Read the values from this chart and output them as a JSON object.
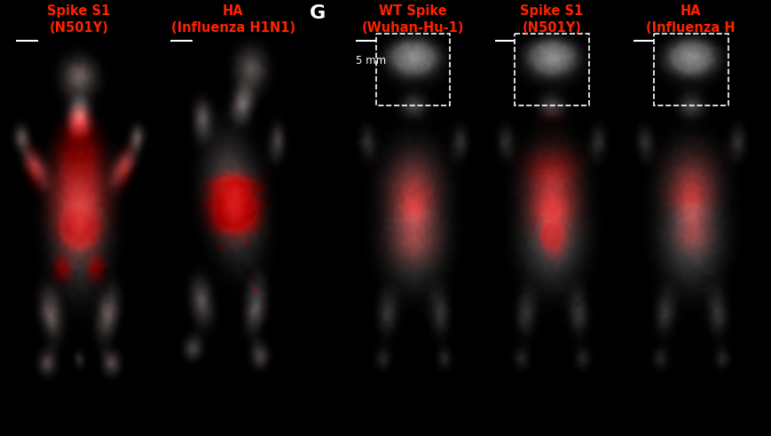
{
  "background_color": "#000000",
  "title_color": "#ff2200",
  "white_color": "#ffffff",
  "panel_G_label": "G",
  "panel_G_label_fontsize": 16,
  "left_titles": [
    "Spike S1\n(N501Y)",
    "HA\n(Influenza H1N1)"
  ],
  "right_titles": [
    "WT Spike\n(Wuhan-Hu-1)",
    "Spike S1\n(N501Y)",
    "HA\n(Influenza H"
  ],
  "scale_bar_text": "5 mm",
  "title_fontsize": 10.5,
  "scale_bar_fontsize": 8.5,
  "fig_width": 8.7,
  "fig_height": 4.92,
  "left_panel_bg": "#ffffff",
  "right_panel_bg": "#111111"
}
